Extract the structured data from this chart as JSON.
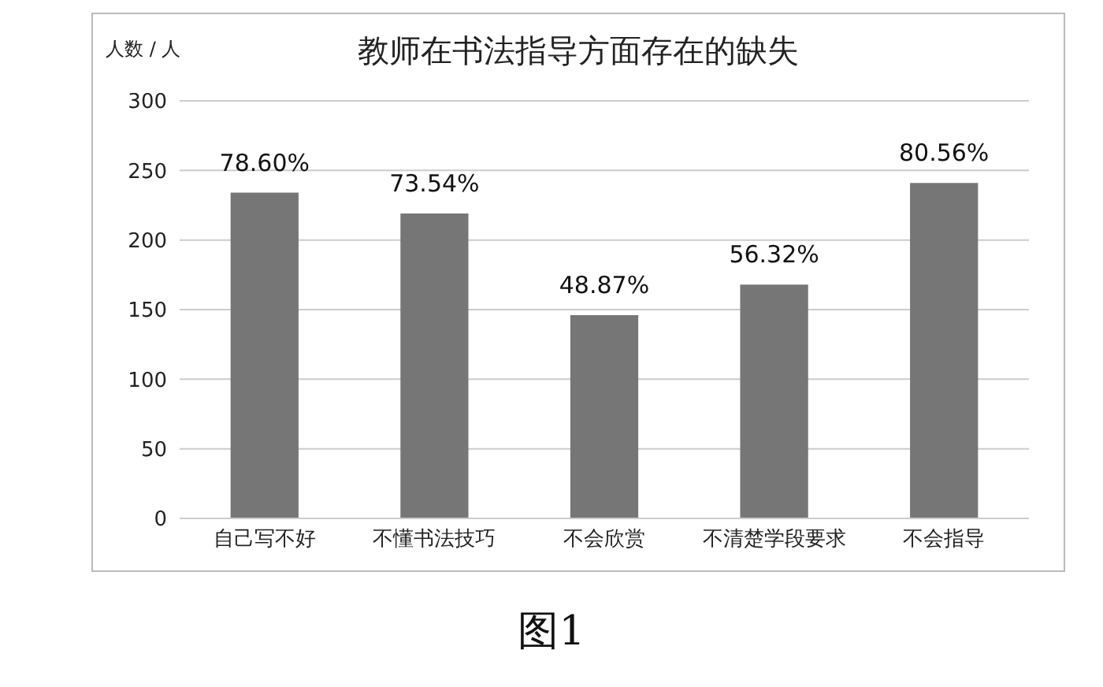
{
  "chart_data": {
    "type": "bar",
    "title": "教师在书法指导方面存在的缺失",
    "ylabel": "人数 / 人",
    "categories": [
      "自己写不好",
      "不懂书法技巧",
      "不会欣赏",
      "不清楚学段要求",
      "不会指导"
    ],
    "values": [
      234,
      219,
      146,
      168,
      241
    ],
    "color": "#767676",
    "ylim": [
      0,
      300
    ],
    "yticks": [
      0,
      50,
      100,
      150,
      200,
      250,
      300
    ],
    "grid": "y",
    "legend": false,
    "annotations": [
      {
        "text": "78.60%",
        "x": "自己写不好",
        "y": 234
      },
      {
        "text": "73.54%",
        "x": "不懂书法技巧",
        "y": 219
      },
      {
        "text": "48.87%",
        "x": "不会欣赏",
        "y": 146
      },
      {
        "text": "56.32%",
        "x": "不清楚学段要求",
        "y": 168
      },
      {
        "text": "80.56%",
        "x": "不会指导",
        "y": 241
      },
      "图1"
    ]
  }
}
